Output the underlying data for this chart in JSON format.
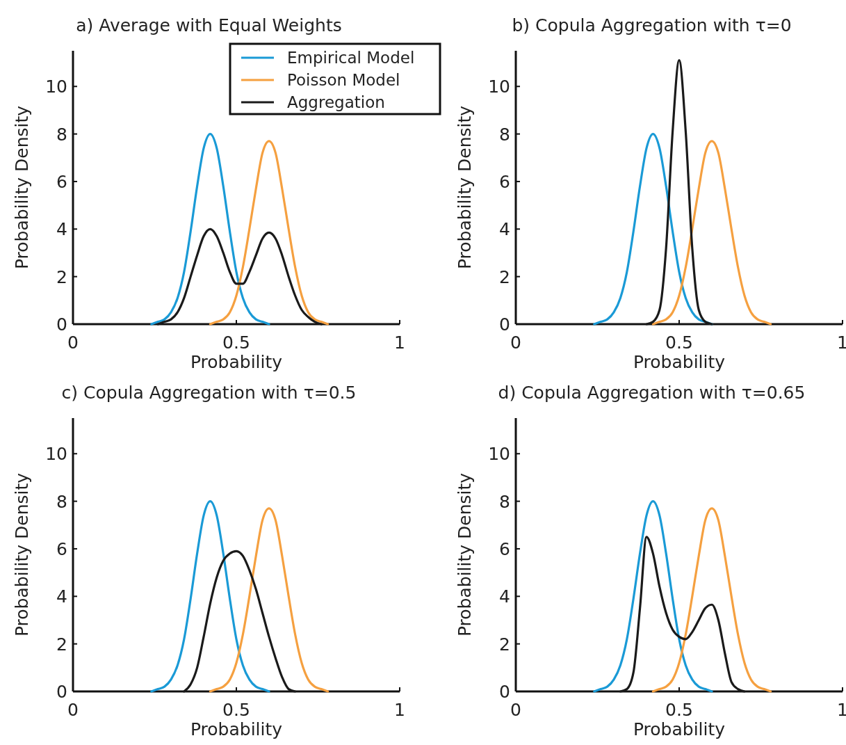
{
  "chart_data": [
    {
      "type": "line",
      "title": "a) Average with Equal Weights",
      "xlabel": "Probability",
      "ylabel": "Probability Density",
      "xlim": [
        0,
        1
      ],
      "xticks": [
        0,
        0.5,
        1
      ],
      "ylim": [
        0,
        11.5
      ],
      "yticks": [
        0,
        2,
        4,
        6,
        8,
        10
      ],
      "legend": "top right",
      "marker": "none",
      "line_style": "solid",
      "series": [
        {
          "name": "Empirical Model",
          "color": "#1a9ad6",
          "x": [
            0.24,
            0.26,
            0.28,
            0.3,
            0.32,
            0.34,
            0.36,
            0.38,
            0.4,
            0.42,
            0.44,
            0.46,
            0.48,
            0.5,
            0.52,
            0.54,
            0.56,
            0.58,
            0.6
          ],
          "values": [
            0,
            0.1,
            0.2,
            0.5,
            1.1,
            2.2,
            3.9,
            5.8,
            7.4,
            8.0,
            7.4,
            5.8,
            3.9,
            2.2,
            1.1,
            0.5,
            0.2,
            0.1,
            0
          ]
        },
        {
          "name": "Poisson Model",
          "color": "#f5a040",
          "x": [
            0.42,
            0.44,
            0.46,
            0.48,
            0.5,
            0.52,
            0.54,
            0.56,
            0.58,
            0.6,
            0.62,
            0.64,
            0.66,
            0.68,
            0.7,
            0.72,
            0.74,
            0.76,
            0.78
          ],
          "values": [
            0,
            0.1,
            0.2,
            0.5,
            1.2,
            2.4,
            4.0,
            5.7,
            7.2,
            7.7,
            7.2,
            5.7,
            4.0,
            2.4,
            1.2,
            0.5,
            0.2,
            0.1,
            0
          ]
        },
        {
          "name": "Aggregation",
          "color": "#1a1a1a",
          "x": [
            0.26,
            0.28,
            0.3,
            0.32,
            0.34,
            0.36,
            0.38,
            0.4,
            0.42,
            0.44,
            0.46,
            0.48,
            0.5,
            0.52,
            0.54,
            0.56,
            0.58,
            0.6,
            0.62,
            0.64,
            0.66,
            0.68,
            0.7,
            0.72,
            0.74,
            0.76
          ],
          "values": [
            0,
            0.1,
            0.2,
            0.5,
            1.1,
            2.0,
            2.9,
            3.7,
            4.0,
            3.7,
            3.0,
            2.2,
            1.7,
            1.7,
            2.2,
            2.9,
            3.6,
            3.85,
            3.6,
            2.9,
            2.0,
            1.2,
            0.6,
            0.3,
            0.1,
            0
          ]
        }
      ]
    },
    {
      "type": "line",
      "title": "b) Copula Aggregation with τ=0",
      "xlabel": "Probability",
      "ylabel": "Probability Density",
      "xlim": [
        0,
        1
      ],
      "xticks": [
        0,
        0.5,
        1
      ],
      "ylim": [
        0,
        11.5
      ],
      "yticks": [
        0,
        2,
        4,
        6,
        8,
        10
      ],
      "marker": "none",
      "line_style": "solid",
      "series": [
        {
          "color": "#1a9ad6",
          "x": [
            0.24,
            0.26,
            0.28,
            0.3,
            0.32,
            0.34,
            0.36,
            0.38,
            0.4,
            0.42,
            0.44,
            0.46,
            0.48,
            0.5,
            0.52,
            0.54,
            0.56,
            0.58,
            0.6
          ],
          "values": [
            0,
            0.1,
            0.2,
            0.5,
            1.1,
            2.2,
            3.9,
            5.8,
            7.4,
            8.0,
            7.4,
            5.8,
            3.9,
            2.2,
            1.1,
            0.5,
            0.2,
            0.1,
            0
          ]
        },
        {
          "color": "#f5a040",
          "x": [
            0.42,
            0.44,
            0.46,
            0.48,
            0.5,
            0.52,
            0.54,
            0.56,
            0.58,
            0.6,
            0.62,
            0.64,
            0.66,
            0.68,
            0.7,
            0.72,
            0.74,
            0.76,
            0.78
          ],
          "values": [
            0,
            0.1,
            0.2,
            0.5,
            1.2,
            2.4,
            4.0,
            5.7,
            7.2,
            7.7,
            7.2,
            5.7,
            4.0,
            2.4,
            1.2,
            0.5,
            0.2,
            0.1,
            0
          ]
        },
        {
          "color": "#1a1a1a",
          "x": [
            0.4,
            0.42,
            0.44,
            0.46,
            0.48,
            0.5,
            0.52,
            0.54,
            0.56,
            0.58,
            0.6
          ],
          "values": [
            0,
            0.1,
            0.6,
            3.2,
            8.1,
            11.1,
            8.1,
            3.2,
            0.6,
            0.1,
            0
          ]
        }
      ]
    },
    {
      "type": "line",
      "title": "c) Copula Aggregation with τ=0.5",
      "xlabel": "Probability",
      "ylabel": "Probability Density",
      "xlim": [
        0,
        1
      ],
      "xticks": [
        0,
        0.5,
        1
      ],
      "ylim": [
        0,
        11.5
      ],
      "yticks": [
        0,
        2,
        4,
        6,
        8,
        10
      ],
      "marker": "none",
      "line_style": "solid",
      "series": [
        {
          "color": "#1a9ad6",
          "x": [
            0.24,
            0.26,
            0.28,
            0.3,
            0.32,
            0.34,
            0.36,
            0.38,
            0.4,
            0.42,
            0.44,
            0.46,
            0.48,
            0.5,
            0.52,
            0.54,
            0.56,
            0.58,
            0.6
          ],
          "values": [
            0,
            0.1,
            0.2,
            0.5,
            1.1,
            2.2,
            3.9,
            5.8,
            7.4,
            8.0,
            7.4,
            5.8,
            3.9,
            2.2,
            1.1,
            0.5,
            0.2,
            0.1,
            0
          ]
        },
        {
          "color": "#f5a040",
          "x": [
            0.42,
            0.44,
            0.46,
            0.48,
            0.5,
            0.52,
            0.54,
            0.56,
            0.58,
            0.6,
            0.62,
            0.64,
            0.66,
            0.68,
            0.7,
            0.72,
            0.74,
            0.76,
            0.78
          ],
          "values": [
            0,
            0.1,
            0.2,
            0.5,
            1.2,
            2.4,
            4.0,
            5.7,
            7.2,
            7.7,
            7.2,
            5.7,
            4.0,
            2.4,
            1.2,
            0.5,
            0.2,
            0.1,
            0
          ]
        },
        {
          "color": "#1a1a1a",
          "x": [
            0.34,
            0.36,
            0.38,
            0.4,
            0.42,
            0.44,
            0.46,
            0.48,
            0.5,
            0.52,
            0.54,
            0.56,
            0.58,
            0.6,
            0.62,
            0.64,
            0.66,
            0.68
          ],
          "values": [
            0,
            0.3,
            1.0,
            2.3,
            3.7,
            4.8,
            5.5,
            5.8,
            5.9,
            5.7,
            5.1,
            4.3,
            3.3,
            2.3,
            1.4,
            0.6,
            0.1,
            0
          ]
        }
      ]
    },
    {
      "type": "line",
      "title": "d) Copula Aggregation with τ=0.65",
      "xlabel": "Probability",
      "ylabel": "Probability Density",
      "xlim": [
        0,
        1
      ],
      "xticks": [
        0,
        0.5,
        1
      ],
      "ylim": [
        0,
        11.5
      ],
      "yticks": [
        0,
        2,
        4,
        6,
        8,
        10
      ],
      "marker": "none",
      "line_style": "solid",
      "series": [
        {
          "color": "#1a9ad6",
          "x": [
            0.24,
            0.26,
            0.28,
            0.3,
            0.32,
            0.34,
            0.36,
            0.38,
            0.4,
            0.42,
            0.44,
            0.46,
            0.48,
            0.5,
            0.52,
            0.54,
            0.56,
            0.58,
            0.6
          ],
          "values": [
            0,
            0.1,
            0.2,
            0.5,
            1.1,
            2.2,
            3.9,
            5.8,
            7.4,
            8.0,
            7.4,
            5.8,
            3.9,
            2.2,
            1.1,
            0.5,
            0.2,
            0.1,
            0
          ]
        },
        {
          "color": "#f5a040",
          "x": [
            0.42,
            0.44,
            0.46,
            0.48,
            0.5,
            0.52,
            0.54,
            0.56,
            0.58,
            0.6,
            0.62,
            0.64,
            0.66,
            0.68,
            0.7,
            0.72,
            0.74,
            0.76,
            0.78
          ],
          "values": [
            0,
            0.1,
            0.2,
            0.5,
            1.2,
            2.4,
            4.0,
            5.7,
            7.2,
            7.7,
            7.2,
            5.7,
            4.0,
            2.4,
            1.2,
            0.5,
            0.2,
            0.1,
            0
          ]
        },
        {
          "color": "#1a1a1a",
          "x": [
            0.32,
            0.34,
            0.36,
            0.38,
            0.4,
            0.42,
            0.44,
            0.46,
            0.48,
            0.5,
            0.52,
            0.54,
            0.56,
            0.58,
            0.6,
            0.62,
            0.64,
            0.66,
            0.68,
            0.7
          ],
          "values": [
            0,
            0.1,
            0.8,
            3.5,
            6.5,
            5.8,
            4.4,
            3.3,
            2.6,
            2.3,
            2.2,
            2.5,
            3.0,
            3.5,
            3.65,
            3.0,
            1.6,
            0.4,
            0.1,
            0
          ]
        }
      ]
    }
  ]
}
